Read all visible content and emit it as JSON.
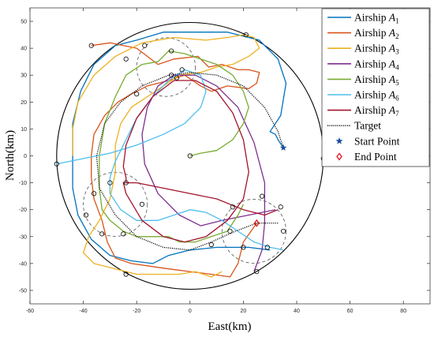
{
  "chart_data": {
    "type": "line",
    "title": "",
    "xlabel": "East(km)",
    "ylabel": "North(km)",
    "xlim": [
      -60,
      90
    ],
    "ylim": [
      -55,
      55
    ],
    "xticks": [
      -60,
      -40,
      -20,
      0,
      20,
      40,
      60,
      80
    ],
    "yticks": [
      -50,
      -40,
      -30,
      -20,
      -10,
      0,
      10,
      20,
      30,
      40,
      50
    ],
    "grid": false,
    "legend_position": "top-right",
    "boundary": {
      "center": [
        0,
        0
      ],
      "radius": 50
    },
    "legend": [
      {
        "label": "Airship ",
        "sub": "1",
        "color": "#0072BD",
        "marker": "line"
      },
      {
        "label": "Airship ",
        "sub": "2",
        "color": "#D95319",
        "marker": "line"
      },
      {
        "label": "Airship ",
        "sub": "3",
        "color": "#EDB120",
        "marker": "line"
      },
      {
        "label": "Airship ",
        "sub": "4",
        "color": "#7E2F8E",
        "marker": "line"
      },
      {
        "label": "Airship ",
        "sub": "5",
        "color": "#77AC30",
        "marker": "line"
      },
      {
        "label": "Airship ",
        "sub": "6",
        "color": "#4DBEEE",
        "marker": "line"
      },
      {
        "label": "Airship ",
        "sub": "7",
        "color": "#A2142F",
        "marker": "line"
      },
      {
        "label": "Target",
        "sub": "",
        "color": "#000000",
        "marker": "dotted"
      },
      {
        "label": "Start Point",
        "sub": "",
        "color": "#1f4e9c",
        "marker": "star"
      },
      {
        "label": "End Point",
        "sub": "",
        "color": "#e0141e",
        "marker": "diamond"
      }
    ],
    "series": [
      {
        "color": "#0072BD",
        "points": [
          [
            35,
            3
          ],
          [
            33,
            6
          ],
          [
            32,
            8
          ],
          [
            30,
            9
          ],
          [
            34,
            15
          ],
          [
            36,
            27
          ],
          [
            33,
            36
          ],
          [
            26,
            43
          ],
          [
            14,
            46
          ],
          [
            2,
            46
          ],
          [
            -10,
            46
          ],
          [
            -20,
            43
          ],
          [
            -28,
            41
          ],
          [
            -36,
            34
          ],
          [
            -41,
            24
          ],
          [
            -44,
            12
          ],
          [
            -44,
            0
          ],
          [
            -44,
            -12
          ],
          [
            -42,
            -22
          ],
          [
            -37,
            -31
          ],
          [
            -30,
            -37
          ],
          [
            -22,
            -39
          ],
          [
            -14,
            -40
          ],
          [
            -8,
            -37
          ],
          [
            0,
            -35
          ],
          [
            10,
            -34
          ],
          [
            22,
            -34
          ],
          [
            30,
            -35
          ]
        ]
      },
      {
        "color": "#D95319",
        "points": [
          [
            -37,
            41
          ],
          [
            -30,
            42
          ],
          [
            -20,
            40
          ],
          [
            -12,
            34
          ],
          [
            -6,
            36
          ],
          [
            3,
            37
          ],
          [
            7,
            33
          ],
          [
            12,
            34
          ],
          [
            18,
            32
          ],
          [
            22,
            32
          ],
          [
            26,
            31
          ],
          [
            25,
            27
          ],
          [
            22,
            25
          ],
          [
            14,
            26
          ],
          [
            8,
            24
          ],
          [
            4,
            26
          ],
          [
            -2,
            30
          ],
          [
            -8,
            28
          ],
          [
            -16,
            26
          ],
          [
            -22,
            23
          ],
          [
            -27,
            20
          ],
          [
            -32,
            15
          ],
          [
            -36,
            8
          ],
          [
            -37,
            0
          ],
          [
            -37,
            -8
          ],
          [
            -36,
            -16
          ],
          [
            -33,
            -24
          ],
          [
            -31,
            -32
          ],
          [
            -28,
            -38
          ],
          [
            -22,
            -40
          ],
          [
            -15,
            -41
          ],
          [
            -8,
            -42
          ],
          [
            0,
            -43
          ],
          [
            8,
            -44
          ],
          [
            15,
            -45
          ],
          [
            18,
            -40
          ],
          [
            20,
            -32
          ],
          [
            25,
            -25
          ]
        ]
      },
      {
        "color": "#EDB120",
        "points": [
          [
            -44,
            0
          ],
          [
            -44,
            10
          ],
          [
            -42,
            20
          ],
          [
            -36,
            30
          ],
          [
            -28,
            37
          ],
          [
            -18,
            42
          ],
          [
            -6,
            44
          ],
          [
            6,
            43
          ],
          [
            14,
            44
          ],
          [
            20,
            45
          ],
          [
            24,
            44
          ],
          [
            26,
            40
          ],
          [
            22,
            37
          ],
          [
            16,
            34
          ],
          [
            10,
            33
          ],
          [
            4,
            31
          ],
          [
            -4,
            30
          ],
          [
            -10,
            26
          ],
          [
            -16,
            22
          ],
          [
            -22,
            18
          ],
          [
            -26,
            12
          ],
          [
            -28,
            4
          ],
          [
            -28,
            -6
          ],
          [
            -30,
            -16
          ],
          [
            -34,
            -24
          ],
          [
            -38,
            -30
          ],
          [
            -40,
            -36
          ],
          [
            -36,
            -40
          ],
          [
            -28,
            -42
          ],
          [
            -20,
            -44
          ],
          [
            -12,
            -44
          ],
          [
            -4,
            -44
          ],
          [
            2,
            -43
          ],
          [
            8,
            -45
          ],
          [
            12,
            -43
          ]
        ]
      },
      {
        "color": "#7E2F8E",
        "points": [
          [
            24,
            -43
          ],
          [
            27,
            -35
          ],
          [
            28,
            -25
          ],
          [
            28,
            -10
          ],
          [
            24,
            5
          ],
          [
            18,
            18
          ],
          [
            10,
            26
          ],
          [
            2,
            30
          ],
          [
            -6,
            30
          ],
          [
            -12,
            26
          ],
          [
            -16,
            18
          ],
          [
            -18,
            8
          ],
          [
            -17,
            -3
          ],
          [
            -12,
            -14
          ],
          [
            -4,
            -22
          ],
          [
            4,
            -26
          ],
          [
            12,
            -24
          ],
          [
            22,
            -22
          ],
          [
            32,
            -20
          ]
        ]
      },
      {
        "color": "#77AC30",
        "points": [
          [
            0,
            0
          ],
          [
            4,
            1
          ],
          [
            10,
            2
          ],
          [
            16,
            6
          ],
          [
            20,
            12
          ],
          [
            22,
            18
          ],
          [
            20,
            24
          ],
          [
            16,
            30
          ],
          [
            10,
            34
          ],
          [
            4,
            36
          ],
          [
            -2,
            38
          ],
          [
            -8,
            39
          ],
          [
            -12,
            35
          ],
          [
            -18,
            34
          ],
          [
            -24,
            30
          ],
          [
            -28,
            22
          ],
          [
            -32,
            12
          ],
          [
            -34,
            0
          ],
          [
            -34,
            -12
          ],
          [
            -33,
            -20
          ],
          [
            -30,
            -24
          ],
          [
            -25,
            -28
          ],
          [
            -20,
            -30
          ],
          [
            -14,
            -30
          ],
          [
            -8,
            -30
          ],
          [
            -4,
            -32
          ],
          [
            2,
            -32
          ],
          [
            8,
            -30
          ],
          [
            14,
            -28
          ],
          [
            18,
            -22
          ],
          [
            20,
            -18
          ]
        ]
      },
      {
        "color": "#4DBEEE",
        "points": [
          [
            -50,
            -3
          ],
          [
            -40,
            -1
          ],
          [
            -30,
            1
          ],
          [
            -20,
            4
          ],
          [
            -10,
            8
          ],
          [
            -2,
            12
          ],
          [
            4,
            18
          ],
          [
            6,
            24
          ],
          [
            4,
            30
          ],
          [
            -2,
            32
          ],
          [
            -8,
            28
          ],
          [
            -14,
            22
          ],
          [
            -20,
            14
          ],
          [
            -24,
            6
          ],
          [
            -28,
            -2
          ],
          [
            -30,
            -8
          ],
          [
            -30,
            -14
          ],
          [
            -26,
            -20
          ],
          [
            -20,
            -24
          ],
          [
            -12,
            -24
          ],
          [
            -6,
            -22
          ],
          [
            0,
            -20
          ],
          [
            6,
            -21
          ],
          [
            12,
            -24
          ],
          [
            18,
            -28
          ],
          [
            24,
            -32
          ],
          [
            30,
            -34
          ],
          [
            35,
            -35
          ]
        ]
      },
      {
        "color": "#A2142F",
        "points": [
          [
            -24,
            -10
          ],
          [
            -24,
            -8
          ],
          [
            -25,
            -4
          ],
          [
            -24,
            4
          ],
          [
            -20,
            14
          ],
          [
            -14,
            22
          ],
          [
            -6,
            28
          ],
          [
            2,
            28
          ],
          [
            10,
            24
          ],
          [
            16,
            16
          ],
          [
            20,
            6
          ],
          [
            22,
            -6
          ],
          [
            20,
            -16
          ],
          [
            14,
            -24
          ],
          [
            6,
            -30
          ],
          [
            -2,
            -32
          ],
          [
            -10,
            -30
          ],
          [
            -18,
            -24
          ],
          [
            -24,
            -14
          ],
          [
            -25,
            -10
          ],
          [
            -20,
            -10
          ],
          [
            -10,
            -12
          ],
          [
            0,
            -14
          ],
          [
            10,
            -16
          ],
          [
            20,
            -20
          ],
          [
            28,
            -22
          ],
          [
            33,
            -20
          ]
        ]
      }
    ],
    "target": {
      "color": "#000000",
      "points": [
        [
          33,
          -25
        ],
        [
          25,
          -25
        ],
        [
          17,
          -28
        ],
        [
          8,
          -32
        ],
        [
          0,
          -35
        ],
        [
          -10,
          -34
        ],
        [
          -20,
          -30
        ],
        [
          -28,
          -22
        ],
        [
          -34,
          -12
        ],
        [
          -35,
          0
        ],
        [
          -32,
          12
        ],
        [
          -26,
          20
        ],
        [
          -18,
          26
        ],
        [
          -8,
          30
        ],
        [
          0,
          31
        ],
        [
          10,
          30
        ],
        [
          20,
          26
        ],
        [
          28,
          18
        ],
        [
          33,
          9
        ],
        [
          35,
          3
        ]
      ]
    },
    "dashed_circles": [
      {
        "center": [
          -9,
          33
        ],
        "radius": 11
      },
      {
        "center": [
          -28,
          -18
        ],
        "radius": 12
      },
      {
        "center": [
          24,
          -28
        ],
        "radius": 12
      }
    ],
    "start_point": [
      35,
      3
    ],
    "end_point": [
      25,
      -25
    ],
    "waypoints": [
      [
        -37,
        41
      ],
      [
        -17,
        41
      ],
      [
        -7,
        39
      ],
      [
        21,
        45
      ],
      [
        -24,
        36
      ],
      [
        -3,
        32
      ],
      [
        -5,
        29
      ],
      [
        -7,
        30
      ],
      [
        -20,
        23
      ],
      [
        -50,
        -3
      ],
      [
        0,
        0
      ],
      [
        50,
        -1
      ],
      [
        -30,
        -10
      ],
      [
        -24,
        -10
      ],
      [
        -36,
        -14
      ],
      [
        -18,
        -18
      ],
      [
        -39,
        -22
      ],
      [
        16,
        -19
      ],
      [
        27,
        -15
      ],
      [
        34,
        -19
      ],
      [
        -33,
        -29
      ],
      [
        -25,
        -29
      ],
      [
        15,
        -28
      ],
      [
        35,
        -28
      ],
      [
        8,
        -33
      ],
      [
        20,
        -34
      ],
      [
        29,
        -34
      ],
      [
        -24,
        -44
      ],
      [
        25,
        -43
      ]
    ]
  }
}
